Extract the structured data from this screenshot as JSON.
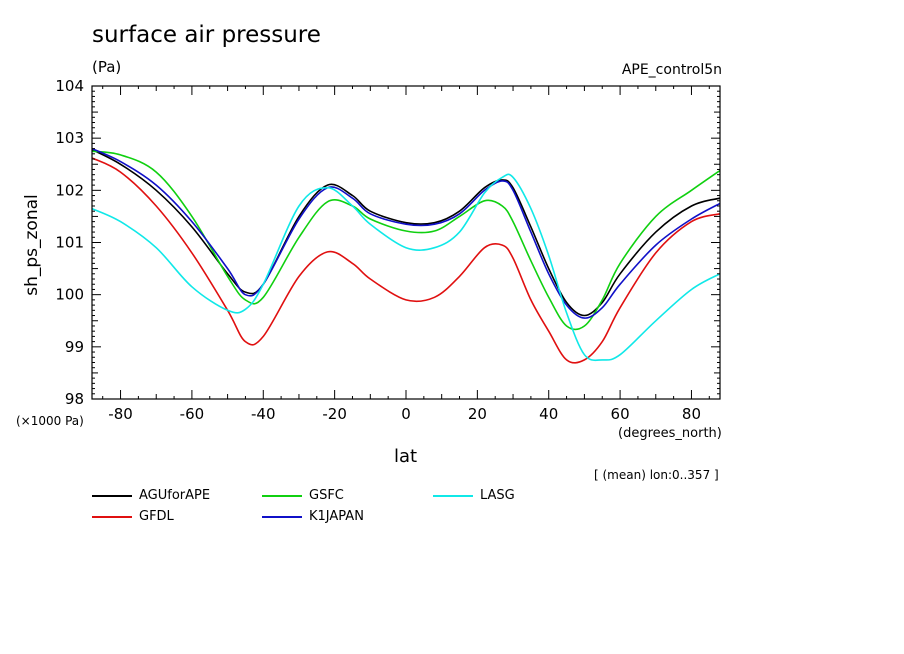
{
  "chart_data": {
    "type": "line",
    "title": "surface air pressure",
    "units": "(Pa)",
    "dataset": "APE_control5n",
    "ylabel": "sh_ps_zonal",
    "xlabel": "lat",
    "y_scale_label": "(×1000 Pa)",
    "x_units": "(degrees_north)",
    "annotation": "[ (mean) lon:0..357 ]",
    "xlim": [
      -88,
      88
    ],
    "ylim": [
      98,
      104
    ],
    "x_ticks": [
      -80,
      -60,
      -40,
      -20,
      0,
      20,
      40,
      60,
      80
    ],
    "y_ticks": [
      98,
      99,
      100,
      101,
      102,
      103,
      104
    ],
    "x": [
      -88,
      -80,
      -70,
      -60,
      -50,
      -45,
      -40,
      -30,
      -22,
      -15,
      -10,
      0,
      8,
      15,
      22,
      27,
      30,
      35,
      40,
      45,
      50,
      55,
      60,
      70,
      80,
      88
    ],
    "series": [
      {
        "name": "AGUforAPE",
        "color": "#000000",
        "values": [
          102.78,
          102.5,
          102.0,
          101.3,
          100.4,
          100.05,
          100.2,
          101.5,
          102.1,
          101.9,
          101.6,
          101.38,
          101.38,
          101.6,
          102.05,
          102.2,
          102.05,
          101.3,
          100.5,
          99.85,
          99.6,
          99.85,
          100.4,
          101.2,
          101.7,
          101.85
        ]
      },
      {
        "name": "GFDL",
        "color": "#e01010",
        "values": [
          102.62,
          102.35,
          101.7,
          100.8,
          99.7,
          99.1,
          99.2,
          100.35,
          100.82,
          100.6,
          100.3,
          99.9,
          99.95,
          100.35,
          100.9,
          100.95,
          100.7,
          99.9,
          99.3,
          98.75,
          98.75,
          99.1,
          99.75,
          100.8,
          101.4,
          101.55
        ]
      },
      {
        "name": "GSFC",
        "color": "#10d010",
        "values": [
          102.75,
          102.68,
          102.35,
          101.5,
          100.35,
          99.9,
          99.95,
          101.1,
          101.78,
          101.7,
          101.45,
          101.22,
          101.22,
          101.5,
          101.8,
          101.7,
          101.4,
          100.65,
          99.95,
          99.4,
          99.4,
          99.9,
          100.6,
          101.5,
          102.0,
          102.38
        ]
      },
      {
        "name": "K1JAPAN",
        "color": "#1010c8",
        "values": [
          102.8,
          102.55,
          102.1,
          101.4,
          100.5,
          100.0,
          100.2,
          101.45,
          102.05,
          101.85,
          101.55,
          101.35,
          101.35,
          101.55,
          102.0,
          102.18,
          102.0,
          101.2,
          100.4,
          99.8,
          99.55,
          99.75,
          100.2,
          100.95,
          101.45,
          101.75
        ]
      },
      {
        "name": "LASG",
        "color": "#10e8e8",
        "values": [
          101.65,
          101.4,
          100.9,
          100.15,
          99.7,
          99.72,
          100.2,
          101.7,
          102.05,
          101.7,
          101.35,
          100.9,
          100.9,
          101.2,
          101.95,
          102.25,
          102.25,
          101.65,
          100.75,
          99.65,
          98.85,
          98.75,
          98.85,
          99.5,
          100.1,
          100.4
        ]
      }
    ]
  }
}
